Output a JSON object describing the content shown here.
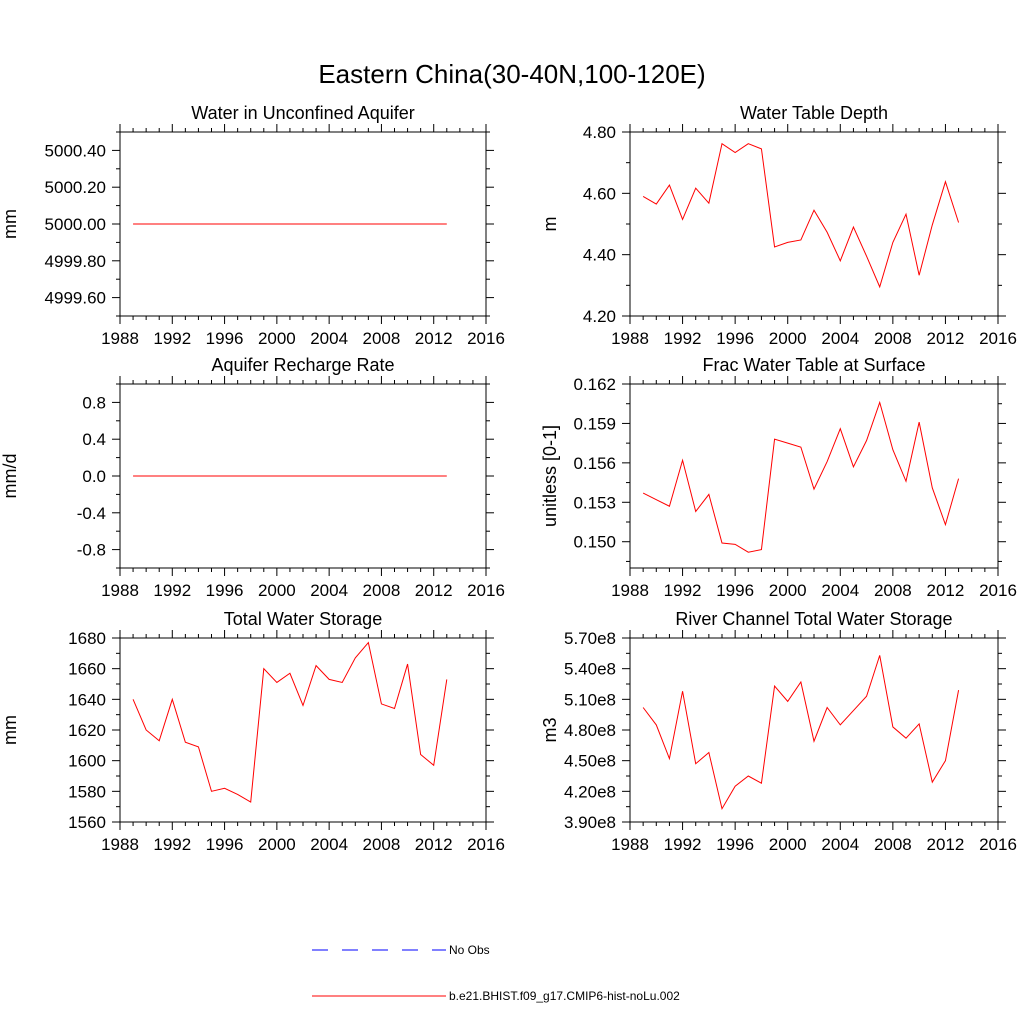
{
  "figure": {
    "title": "Eastern China(30-40N,100-120E)"
  },
  "legend": {
    "entries": [
      {
        "label": "No Obs",
        "color": "#0000ff",
        "style": "dashed"
      },
      {
        "label": "b.e21.BHIST.f09_g17.CMIP6-hist-noLu.002",
        "color": "#ff0000",
        "style": "solid"
      }
    ]
  },
  "chart_data": [
    {
      "type": "line",
      "title": "Water in Unconfined Aquifer",
      "ylabel": "mm",
      "xlim": [
        1988,
        2016
      ],
      "ylim": [
        4999.5,
        5000.5
      ],
      "xticks": [
        "1988",
        "1992",
        "1996",
        "2000",
        "2004",
        "2008",
        "2012",
        "2016"
      ],
      "yticks": [
        "4999.60",
        "4999.80",
        "5000.00",
        "5000.20",
        "5000.40"
      ],
      "x": [
        1989,
        1990,
        1991,
        1992,
        1993,
        1994,
        1995,
        1996,
        1997,
        1998,
        1999,
        2000,
        2001,
        2002,
        2003,
        2004,
        2005,
        2006,
        2007,
        2008,
        2009,
        2010,
        2011,
        2012,
        2013
      ],
      "series": [
        {
          "name": "b.e21.BHIST.f09_g17.CMIP6-hist-noLu.002",
          "color": "#ff0000",
          "values": [
            5000,
            5000,
            5000,
            5000,
            5000,
            5000,
            5000,
            5000,
            5000,
            5000,
            5000,
            5000,
            5000,
            5000,
            5000,
            5000,
            5000,
            5000,
            5000,
            5000,
            5000,
            5000,
            5000,
            5000,
            5000
          ]
        }
      ]
    },
    {
      "type": "line",
      "title": "Water Table Depth",
      "ylabel": "m",
      "xlim": [
        1988,
        2016
      ],
      "ylim": [
        4.2,
        4.8
      ],
      "xticks": [
        "1988",
        "1992",
        "1996",
        "2000",
        "2004",
        "2008",
        "2012",
        "2016"
      ],
      "yticks": [
        "4.20",
        "4.40",
        "4.60",
        "4.80"
      ],
      "x": [
        1989,
        1990,
        1991,
        1992,
        1993,
        1994,
        1995,
        1996,
        1997,
        1998,
        1999,
        2000,
        2001,
        2002,
        2003,
        2004,
        2005,
        2006,
        2007,
        2008,
        2009,
        2010,
        2011,
        2012,
        2013
      ],
      "series": [
        {
          "name": "b.e21.BHIST.f09_g17.CMIP6-hist-noLu.002",
          "color": "#ff0000",
          "values": [
            4.59,
            4.565,
            4.627,
            4.515,
            4.617,
            4.568,
            4.762,
            4.733,
            4.762,
            4.745,
            4.425,
            4.44,
            4.448,
            4.545,
            4.473,
            4.38,
            4.49,
            4.395,
            4.295,
            4.44,
            4.532,
            4.333,
            4.497,
            4.638,
            4.505
          ]
        }
      ]
    },
    {
      "type": "line",
      "title": "Aquifer Recharge Rate",
      "ylabel": "mm/d",
      "xlim": [
        1988,
        2016
      ],
      "ylim": [
        -1.0,
        1.0
      ],
      "xticks": [
        "1988",
        "1992",
        "1996",
        "2000",
        "2004",
        "2008",
        "2012",
        "2016"
      ],
      "yticks": [
        "-0.8",
        "-0.4",
        "0.0",
        "0.4",
        "0.8"
      ],
      "x": [
        1989,
        1990,
        1991,
        1992,
        1993,
        1994,
        1995,
        1996,
        1997,
        1998,
        1999,
        2000,
        2001,
        2002,
        2003,
        2004,
        2005,
        2006,
        2007,
        2008,
        2009,
        2010,
        2011,
        2012,
        2013
      ],
      "series": [
        {
          "name": "b.e21.BHIST.f09_g17.CMIP6-hist-noLu.002",
          "color": "#ff0000",
          "values": [
            0,
            0,
            0,
            0,
            0,
            0,
            0,
            0,
            0,
            0,
            0,
            0,
            0,
            0,
            0,
            0,
            0,
            0,
            0,
            0,
            0,
            0,
            0,
            0,
            0
          ]
        }
      ]
    },
    {
      "type": "line",
      "title": "Frac Water Table at Surface",
      "ylabel": "unitless [0-1]",
      "xlim": [
        1988,
        2016
      ],
      "ylim": [
        0.148,
        0.162
      ],
      "xticks": [
        "1988",
        "1992",
        "1996",
        "2000",
        "2004",
        "2008",
        "2012",
        "2016"
      ],
      "yticks": [
        "0.150",
        "0.153",
        "0.156",
        "0.159",
        "0.162"
      ],
      "x": [
        1989,
        1990,
        1991,
        1992,
        1993,
        1994,
        1995,
        1996,
        1997,
        1998,
        1999,
        2000,
        2001,
        2002,
        2003,
        2004,
        2005,
        2006,
        2007,
        2008,
        2009,
        2010,
        2011,
        2012,
        2013
      ],
      "series": [
        {
          "name": "b.e21.BHIST.f09_g17.CMIP6-hist-noLu.002",
          "color": "#ff0000",
          "values": [
            0.1537,
            0.1532,
            0.1527,
            0.1562,
            0.1523,
            0.1536,
            0.1499,
            0.1498,
            0.1492,
            0.1494,
            0.1578,
            0.1575,
            0.1572,
            0.154,
            0.1561,
            0.1586,
            0.1557,
            0.1577,
            0.1606,
            0.157,
            0.1546,
            0.1591,
            0.1541,
            0.1513,
            0.1548
          ]
        }
      ]
    },
    {
      "type": "line",
      "title": "Total Water Storage",
      "ylabel": "mm",
      "xlim": [
        1988,
        2016
      ],
      "ylim": [
        1560,
        1680
      ],
      "xticks": [
        "1988",
        "1992",
        "1996",
        "2000",
        "2004",
        "2008",
        "2012",
        "2016"
      ],
      "yticks": [
        "1560",
        "1580",
        "1600",
        "1620",
        "1640",
        "1660",
        "1680"
      ],
      "x": [
        1989,
        1990,
        1991,
        1992,
        1993,
        1994,
        1995,
        1996,
        1997,
        1998,
        1999,
        2000,
        2001,
        2002,
        2003,
        2004,
        2005,
        2006,
        2007,
        2008,
        2009,
        2010,
        2011,
        2012,
        2013
      ],
      "series": [
        {
          "name": "b.e21.BHIST.f09_g17.CMIP6-hist-noLu.002",
          "color": "#ff0000",
          "values": [
            1640,
            1620,
            1613,
            1640,
            1612,
            1609,
            1580,
            1582,
            1578,
            1573,
            1660,
            1651,
            1657,
            1636,
            1662,
            1653,
            1651,
            1667,
            1677,
            1637,
            1634,
            1663,
            1604,
            1597,
            1653
          ]
        }
      ]
    },
    {
      "type": "line",
      "title": "River Channel Total Water Storage",
      "ylabel": "m3",
      "xlim": [
        1988,
        2016
      ],
      "ylim": [
        390000000.0,
        570000000.0
      ],
      "xticks": [
        "1988",
        "1992",
        "1996",
        "2000",
        "2004",
        "2008",
        "2012",
        "2016"
      ],
      "yticks": [
        "3.90e8",
        "4.20e8",
        "4.50e8",
        "4.80e8",
        "5.10e8",
        "5.40e8",
        "5.70e8"
      ],
      "x": [
        1989,
        1990,
        1991,
        1992,
        1993,
        1994,
        1995,
        1996,
        1997,
        1998,
        1999,
        2000,
        2001,
        2002,
        2003,
        2004,
        2005,
        2006,
        2007,
        2008,
        2009,
        2010,
        2011,
        2012,
        2013
      ],
      "series": [
        {
          "name": "b.e21.BHIST.f09_g17.CMIP6-hist-noLu.002",
          "color": "#ff0000",
          "values": [
            502000000.0,
            485000000.0,
            452000000.0,
            518000000.0,
            447000000.0,
            458000000.0,
            403000000.0,
            425000000.0,
            435000000.0,
            428000000.0,
            523000000.0,
            508000000.0,
            527000000.0,
            469000000.0,
            502000000.0,
            485000000.0,
            499000000.0,
            513000000.0,
            553000000.0,
            483000000.0,
            472000000.0,
            486000000.0,
            429000000.0,
            450000000.0,
            519000000.0
          ]
        }
      ]
    }
  ]
}
